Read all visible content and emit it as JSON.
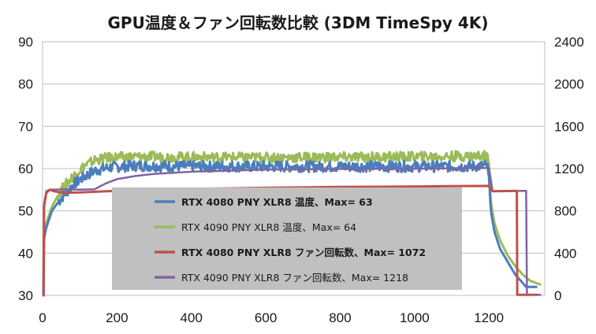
{
  "chart_data": {
    "type": "line",
    "title": "GPU温度＆ファン回転数比較 (3DM TimeSpy 4K)",
    "xlabel": "",
    "ylabel": "",
    "xlim": [
      0,
      1350
    ],
    "ylim": [
      30,
      90
    ],
    "y2lim": [
      0,
      2400
    ],
    "x_ticks": [
      "0",
      "200",
      "400",
      "600",
      "800",
      "1000",
      "1200"
    ],
    "y_ticks": [
      "30",
      "40",
      "50",
      "60",
      "70",
      "80",
      "90"
    ],
    "y2_ticks": [
      "0",
      "400",
      "800",
      "1200",
      "1600",
      "2000",
      "2400"
    ],
    "grid": "horizontal",
    "legend_position": "center",
    "series": [
      {
        "name": "RTX 4080 PNY XLR8 温度、Max= 63",
        "axis": "left",
        "color": "#4a7ebb",
        "bold": true,
        "width": 3,
        "noise": 1.3,
        "points": [
          [
            0,
            30
          ],
          [
            2,
            30
          ],
          [
            3,
            43
          ],
          [
            10,
            46
          ],
          [
            25,
            50
          ],
          [
            50,
            53
          ],
          [
            80,
            56
          ],
          [
            110,
            58
          ],
          [
            140,
            59.5
          ],
          [
            180,
            60.3
          ],
          [
            250,
            60.7
          ],
          [
            400,
            60.5
          ],
          [
            600,
            60.5
          ],
          [
            800,
            60.5
          ],
          [
            1000,
            60.5
          ],
          [
            1150,
            60.5
          ],
          [
            1195,
            60.7
          ],
          [
            1200,
            58
          ],
          [
            1205,
            50
          ],
          [
            1215,
            45
          ],
          [
            1230,
            41
          ],
          [
            1250,
            38
          ],
          [
            1270,
            35
          ],
          [
            1290,
            33
          ],
          [
            1300,
            32
          ],
          [
            1330,
            32
          ]
        ]
      },
      {
        "name": "RTX 4090 PNY XLR8 温度、Max= 64",
        "axis": "left",
        "color": "#9bbb59",
        "bold": false,
        "width": 3,
        "noise": 1.2,
        "points": [
          [
            0,
            30
          ],
          [
            2,
            30
          ],
          [
            3,
            44
          ],
          [
            10,
            47
          ],
          [
            25,
            51
          ],
          [
            50,
            55
          ],
          [
            80,
            58
          ],
          [
            110,
            60.5
          ],
          [
            140,
            62
          ],
          [
            180,
            62.6
          ],
          [
            250,
            62.8
          ],
          [
            600,
            62.6
          ],
          [
            1000,
            62.8
          ],
          [
            1195,
            63
          ],
          [
            1200,
            61
          ],
          [
            1205,
            52
          ],
          [
            1215,
            47
          ],
          [
            1230,
            43
          ],
          [
            1250,
            39.5
          ],
          [
            1270,
            37
          ],
          [
            1290,
            35
          ],
          [
            1310,
            33.5
          ],
          [
            1340,
            32.5
          ]
        ]
      },
      {
        "name": "RTX 4080 PNY XLR8 ファン回転数、Max= 1072",
        "axis": "right",
        "color": "#c0504d",
        "bold": true,
        "width": 3,
        "noise": 0,
        "points": [
          [
            0,
            0
          ],
          [
            3,
            0
          ],
          [
            4,
            840
          ],
          [
            10,
            970
          ],
          [
            20,
            1000
          ],
          [
            30,
            985
          ],
          [
            60,
            970
          ],
          [
            100,
            975
          ],
          [
            200,
            990
          ],
          [
            300,
            1000
          ],
          [
            400,
            1008
          ],
          [
            500,
            1013
          ],
          [
            600,
            1018
          ],
          [
            700,
            1022
          ],
          [
            800,
            1026
          ],
          [
            900,
            1028
          ],
          [
            1000,
            1031
          ],
          [
            1100,
            1034
          ],
          [
            1200,
            1036
          ],
          [
            1210,
            985
          ],
          [
            1275,
            990
          ],
          [
            1276,
            5
          ],
          [
            1330,
            5
          ]
        ]
      },
      {
        "name": "RTX 4090 PNY XLR8 ファン回転数、Max= 1218",
        "axis": "right",
        "color": "#8064a2",
        "bold": false,
        "width": 2.5,
        "noise": 0,
        "points": [
          [
            0,
            0
          ],
          [
            3,
            0
          ],
          [
            4,
            860
          ],
          [
            10,
            985
          ],
          [
            20,
            1000
          ],
          [
            60,
            1003
          ],
          [
            100,
            1000
          ],
          [
            140,
            1005
          ],
          [
            170,
            1060
          ],
          [
            200,
            1100
          ],
          [
            250,
            1130
          ],
          [
            300,
            1150
          ],
          [
            400,
            1170
          ],
          [
            500,
            1180
          ],
          [
            600,
            1190
          ],
          [
            800,
            1196
          ],
          [
            1000,
            1200
          ],
          [
            1200,
            1206
          ],
          [
            1210,
            985
          ],
          [
            1300,
            990
          ],
          [
            1302,
            5
          ],
          [
            1340,
            5
          ]
        ]
      }
    ]
  }
}
